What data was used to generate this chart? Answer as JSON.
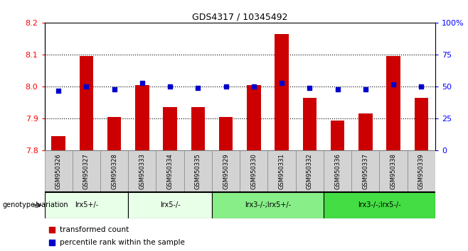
{
  "title": "GDS4317 / 10345492",
  "categories": [
    "GSM950326",
    "GSM950327",
    "GSM950328",
    "GSM950333",
    "GSM950334",
    "GSM950335",
    "GSM950329",
    "GSM950330",
    "GSM950331",
    "GSM950332",
    "GSM950336",
    "GSM950337",
    "GSM950338",
    "GSM950339"
  ],
  "red_values": [
    7.845,
    8.095,
    7.905,
    8.005,
    7.935,
    7.935,
    7.905,
    8.005,
    8.165,
    7.965,
    7.895,
    7.915,
    8.095,
    7.965
  ],
  "blue_values": [
    47,
    50,
    48,
    53,
    50,
    49,
    50,
    50,
    53,
    49,
    48,
    48,
    52,
    50
  ],
  "ylim_left": [
    7.8,
    8.2
  ],
  "ylim_right": [
    0,
    100
  ],
  "yticks_left": [
    7.8,
    7.9,
    8.0,
    8.1,
    8.2
  ],
  "yticks_right": [
    0,
    25,
    50,
    75,
    100
  ],
  "bar_color": "#cc0000",
  "dot_color": "#0000cc",
  "bar_baseline": 7.8,
  "groups": [
    {
      "label": "lrx5+/-",
      "start": 0,
      "end": 3,
      "color": "#ddffd0"
    },
    {
      "label": "lrx5-/-",
      "start": 3,
      "end": 6,
      "color": "#ddffd0"
    },
    {
      "label": "lrx3-/-;lrx5+/-",
      "start": 6,
      "end": 10,
      "color": "#66dd66"
    },
    {
      "label": "lrx3-/-;lrx5-/-",
      "start": 10,
      "end": 14,
      "color": "#44cc44"
    }
  ],
  "genotype_label": "genotype/variation",
  "legend_red": "transformed count",
  "legend_blue": "percentile rank within the sample",
  "dotted_yticks": [
    7.9,
    8.0,
    8.1
  ],
  "bg_color": "#ffffff",
  "xlabel_area_color": "#cccccc"
}
